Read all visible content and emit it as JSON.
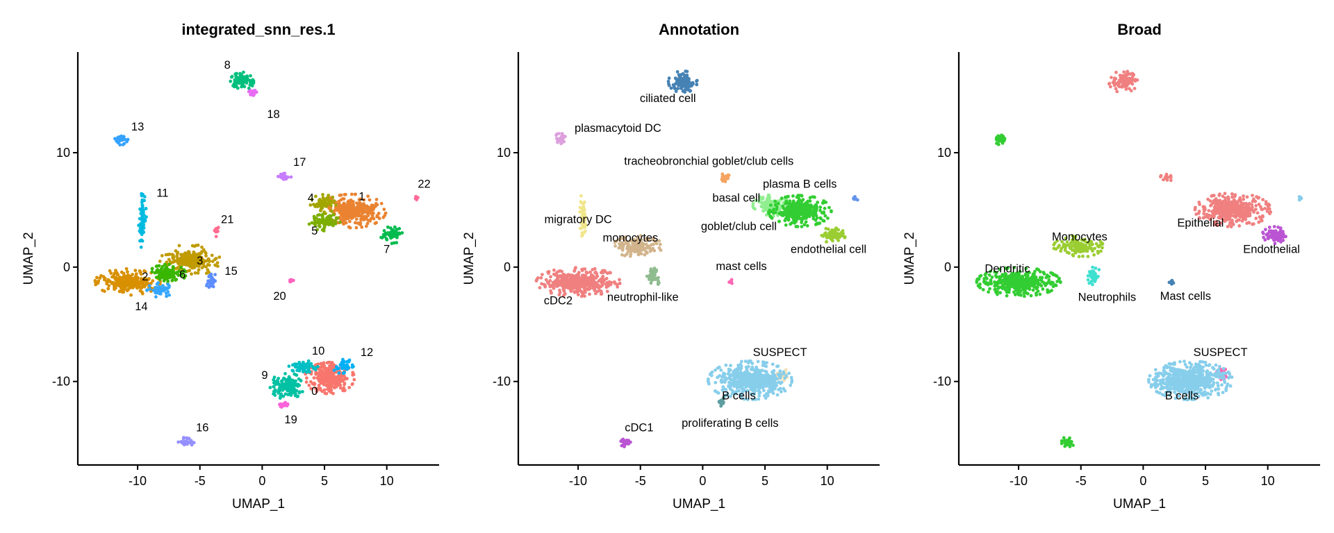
{
  "chart_data": [
    {
      "type": "scatter",
      "title": "integrated_snn_res.1",
      "xlabel": "UMAP_1",
      "ylabel": "UMAP_2",
      "xlim": [
        -14.8,
        14.2
      ],
      "ylim": [
        -17.3,
        18.8
      ],
      "xticks": [
        -10,
        -5,
        0,
        5,
        10
      ],
      "xtick_labels": [
        "-10",
        "-5",
        "0",
        "5",
        "10"
      ],
      "yticks": [
        -10,
        0,
        10
      ],
      "ytick_labels": [
        "-10",
        "0",
        "10"
      ],
      "legend": "none",
      "clusters": [
        {
          "label": "0",
          "color": "#F8766D",
          "x": 5.4,
          "y": -9.7,
          "rx": 1.9,
          "ry": 1.3,
          "n": 420,
          "lx": 4.2,
          "ly": -10.8
        },
        {
          "label": "1",
          "color": "#EA8331",
          "x": 7.2,
          "y": 4.9,
          "rx": 2.6,
          "ry": 1.4,
          "n": 420,
          "lx": 8.0,
          "ly": 6.2
        },
        {
          "label": "2",
          "color": "#D89000",
          "x": -10.8,
          "y": -1.3,
          "rx": 2.5,
          "ry": 1.1,
          "n": 360,
          "lx": -9.4,
          "ly": -0.8
        },
        {
          "label": "3",
          "color": "#C09B00",
          "x": -5.8,
          "y": 0.6,
          "rx": 2.3,
          "ry": 1.3,
          "n": 260,
          "lx": -5.0,
          "ly": 0.6
        },
        {
          "label": "4",
          "color": "#A3A500",
          "x": 4.9,
          "y": 5.5,
          "rx": 1.0,
          "ry": 0.8,
          "n": 80,
          "lx": 3.9,
          "ly": 6.1
        },
        {
          "label": "5",
          "color": "#7CAE00",
          "x": 5.2,
          "y": 3.9,
          "rx": 1.4,
          "ry": 0.7,
          "n": 90,
          "lx": 4.2,
          "ly": 3.2
        },
        {
          "label": "6",
          "color": "#39B600",
          "x": -7.6,
          "y": -0.6,
          "rx": 1.4,
          "ry": 0.8,
          "n": 150,
          "lx": -6.4,
          "ly": -0.6
        },
        {
          "label": "7",
          "color": "#00BB4E",
          "x": 10.4,
          "y": 2.8,
          "rx": 0.9,
          "ry": 0.7,
          "n": 90,
          "lx": 10.0,
          "ly": 1.6
        },
        {
          "label": "8",
          "color": "#00BF7D",
          "x": -1.5,
          "y": 16.3,
          "rx": 1.0,
          "ry": 0.7,
          "n": 120,
          "lx": -2.8,
          "ly": 17.7
        },
        {
          "label": "9",
          "color": "#00C1A3",
          "x": 2.0,
          "y": -10.4,
          "rx": 1.3,
          "ry": 1.1,
          "n": 170,
          "lx": 0.2,
          "ly": -9.4
        },
        {
          "label": "10",
          "color": "#00BFC4",
          "x": 3.3,
          "y": -8.7,
          "rx": 1.1,
          "ry": 0.5,
          "n": 80,
          "lx": 4.5,
          "ly": -7.3
        },
        {
          "label": "11",
          "color": "#00BAE0",
          "x": -9.6,
          "y": 4.0,
          "rx": 0.3,
          "ry": 2.4,
          "n": 90,
          "lx": -8.0,
          "ly": 6.5
        },
        {
          "label": "12",
          "color": "#00B0F6",
          "x": 6.6,
          "y": -8.7,
          "rx": 0.9,
          "ry": 0.6,
          "n": 50,
          "lx": 8.4,
          "ly": -7.4
        },
        {
          "label": "13",
          "color": "#35A2FF",
          "x": -11.3,
          "y": 11.2,
          "rx": 0.5,
          "ry": 0.5,
          "n": 45,
          "lx": -10.0,
          "ly": 12.3
        },
        {
          "label": "14",
          "color": "#34A6FF",
          "x": -8.2,
          "y": -2.0,
          "rx": 1.0,
          "ry": 0.6,
          "n": 60,
          "lx": -9.7,
          "ly": -3.4
        },
        {
          "label": "15",
          "color": "#5D8EFF",
          "x": -4.1,
          "y": -1.2,
          "rx": 0.4,
          "ry": 0.8,
          "n": 40,
          "lx": -2.5,
          "ly": -0.3
        },
        {
          "label": "16",
          "color": "#9590FF",
          "x": -6.1,
          "y": -15.3,
          "rx": 0.6,
          "ry": 0.4,
          "n": 45,
          "lx": -4.8,
          "ly": -14.0
        },
        {
          "label": "17",
          "color": "#C77CFF",
          "x": 1.8,
          "y": 7.9,
          "rx": 0.5,
          "ry": 0.4,
          "n": 25,
          "lx": 3.0,
          "ly": 9.2
        },
        {
          "label": "18",
          "color": "#E76BF3",
          "x": -0.6,
          "y": 15.3,
          "rx": 0.7,
          "ry": 0.3,
          "n": 30,
          "lx": 0.9,
          "ly": 13.4
        },
        {
          "label": "19",
          "color": "#FA62DB",
          "x": 1.8,
          "y": -12.0,
          "rx": 0.4,
          "ry": 0.3,
          "n": 25,
          "lx": 2.3,
          "ly": -13.3
        },
        {
          "label": "20",
          "color": "#FF62BC",
          "x": 2.3,
          "y": -1.2,
          "rx": 0.2,
          "ry": 0.2,
          "n": 10,
          "lx": 1.4,
          "ly": -2.5
        },
        {
          "label": "21",
          "color": "#FF6C91",
          "x": -3.7,
          "y": 3.2,
          "rx": 0.3,
          "ry": 0.5,
          "n": 15,
          "lx": -2.8,
          "ly": 4.2
        },
        {
          "label": "22",
          "color": "#FF6A98",
          "x": 12.4,
          "y": 6.0,
          "rx": 0.2,
          "ry": 0.2,
          "n": 10,
          "lx": 13.0,
          "ly": 7.3
        }
      ]
    },
    {
      "type": "scatter",
      "title": "Annotation",
      "xlabel": "UMAP_1",
      "ylabel": "UMAP_2",
      "xlim": [
        -14.8,
        14.2
      ],
      "ylim": [
        -17.3,
        18.8
      ],
      "xticks": [
        -10,
        -5,
        0,
        5,
        10
      ],
      "xtick_labels": [
        "-10",
        "-5",
        "0",
        "5",
        "10"
      ],
      "yticks": [
        -10,
        0,
        10
      ],
      "ytick_labels": [
        "-10",
        "0",
        "10"
      ],
      "legend": "none",
      "clusters": [
        {
          "label": "ciliated cell",
          "color": "#4682B4",
          "x": -1.6,
          "y": 16.2,
          "rx": 1.1,
          "ry": 0.9,
          "n": 140,
          "lx": -2.8,
          "ly": 14.8
        },
        {
          "label": "plasmacytoid DC",
          "color": "#DDA0DD",
          "x": -11.4,
          "y": 11.2,
          "rx": 0.5,
          "ry": 0.5,
          "n": 45,
          "lx": -6.8,
          "ly": 12.2
        },
        {
          "label": "tracheobronchial goblet/club cells",
          "color": "#F4A460",
          "x": 1.9,
          "y": 7.8,
          "rx": 0.5,
          "ry": 0.4,
          "n": 25,
          "lx": 0.5,
          "ly": 9.3
        },
        {
          "label": "plasma B cells",
          "color": "#6495ED",
          "x": 12.2,
          "y": 6.0,
          "rx": 0.3,
          "ry": 0.2,
          "n": 15,
          "lx": 7.8,
          "ly": 7.3
        },
        {
          "label": "basal cell",
          "color": "#90EE90",
          "x": 5.5,
          "y": 5.4,
          "rx": 1.4,
          "ry": 0.9,
          "n": 160,
          "lx": 2.7,
          "ly": 6.1
        },
        {
          "label": "goblet/club cell",
          "color": "#32CD32",
          "x": 7.8,
          "y": 4.9,
          "rx": 2.4,
          "ry": 1.3,
          "n": 420,
          "lx": 2.9,
          "ly": 3.6
        },
        {
          "label": "endothelial cell",
          "color": "#9ACD32",
          "x": 10.5,
          "y": 2.8,
          "rx": 0.9,
          "ry": 0.7,
          "n": 100,
          "lx": 10.1,
          "ly": 1.6
        },
        {
          "label": "migratory DC",
          "color": "#F0E68C",
          "x": -9.6,
          "y": 4.5,
          "rx": 0.3,
          "ry": 1.9,
          "n": 80,
          "lx": -10.0,
          "ly": 4.2
        },
        {
          "label": "monocytes",
          "color": "#D2B48C",
          "x": -5.2,
          "y": 1.8,
          "rx": 1.9,
          "ry": 0.9,
          "n": 160,
          "lx": -5.8,
          "ly": 2.6
        },
        {
          "label": "neutrophil-like",
          "color": "#8FBC8F",
          "x": -4.0,
          "y": -0.8,
          "rx": 0.6,
          "ry": 0.9,
          "n": 50,
          "lx": -4.8,
          "ly": -2.6
        },
        {
          "label": "cDC2",
          "color": "#F08080",
          "x": -10.0,
          "y": -1.3,
          "rx": 3.2,
          "ry": 1.2,
          "n": 520,
          "lx": -11.6,
          "ly": -2.9
        },
        {
          "label": "mast cells",
          "color": "#FF69B4",
          "x": 2.3,
          "y": -1.3,
          "rx": 0.2,
          "ry": 0.2,
          "n": 10,
          "lx": 3.1,
          "ly": 0.1
        },
        {
          "label": "SUSPECT",
          "color": "#F5DEB3",
          "x": 6.3,
          "y": -9.4,
          "rx": 0.6,
          "ry": 0.5,
          "n": 30,
          "lx": 6.2,
          "ly": -7.4
        },
        {
          "label": "B cells",
          "color": "#87CEEB",
          "x": 3.8,
          "y": -9.9,
          "rx": 3.2,
          "ry": 1.6,
          "n": 700,
          "lx": 2.9,
          "ly": -11.2
        },
        {
          "label": "proliferating B cells",
          "color": "#5F9EA0",
          "x": 1.5,
          "y": -11.8,
          "rx": 0.3,
          "ry": 0.5,
          "n": 25,
          "lx": 2.2,
          "ly": -13.6
        },
        {
          "label": "cDC1",
          "color": "#BA55D3",
          "x": -6.1,
          "y": -15.3,
          "rx": 0.6,
          "ry": 0.4,
          "n": 45,
          "lx": -5.1,
          "ly": -14.0
        }
      ]
    },
    {
      "type": "scatter",
      "title": "Broad",
      "xlabel": "UMAP_1",
      "ylabel": "UMAP_2",
      "xlim": [
        -14.8,
        14.2
      ],
      "ylim": [
        -17.3,
        18.8
      ],
      "xticks": [
        -10,
        -5,
        0,
        5,
        10
      ],
      "xtick_labels": [
        "-10",
        "-5",
        "0",
        "5",
        "10"
      ],
      "yticks": [
        -10,
        0,
        10
      ],
      "ytick_labels": [
        "-10",
        "0",
        "10"
      ],
      "legend": "none",
      "clusters": [
        {
          "label": "",
          "color": "#F08080",
          "x": -1.6,
          "y": 16.2,
          "rx": 1.1,
          "ry": 0.9,
          "n": 140
        },
        {
          "label": "",
          "color": "#F08080",
          "x": 1.9,
          "y": 7.8,
          "rx": 0.5,
          "ry": 0.4,
          "n": 25
        },
        {
          "label": "",
          "color": "#32CD32",
          "x": -11.4,
          "y": 11.2,
          "rx": 0.5,
          "ry": 0.5,
          "n": 45
        },
        {
          "label": "",
          "color": "#32CD32",
          "x": -6.1,
          "y": -15.3,
          "rx": 0.6,
          "ry": 0.4,
          "n": 45
        },
        {
          "label": "",
          "color": "#87CEEB",
          "x": 12.6,
          "y": 6.0,
          "rx": 0.2,
          "ry": 0.2,
          "n": 12
        },
        {
          "label": "Epithelial",
          "color": "#F08080",
          "x": 7.2,
          "y": 5.0,
          "rx": 2.9,
          "ry": 1.4,
          "n": 560,
          "lx": 4.6,
          "ly": 3.9
        },
        {
          "label": "Endothelial",
          "color": "#BA55D3",
          "x": 10.5,
          "y": 2.8,
          "rx": 0.9,
          "ry": 0.7,
          "n": 100,
          "lx": 10.3,
          "ly": 1.6
        },
        {
          "label": "Monocytes",
          "color": "#9ACD32",
          "x": -5.2,
          "y": 1.8,
          "rx": 1.9,
          "ry": 0.9,
          "n": 160,
          "lx": -5.1,
          "ly": 2.7
        },
        {
          "label": "Neutrophils",
          "color": "#40E0D0",
          "x": -4.0,
          "y": -0.8,
          "rx": 0.6,
          "ry": 0.9,
          "n": 50,
          "lx": -2.9,
          "ly": -2.6
        },
        {
          "label": "Dendritic",
          "color": "#32CD32",
          "x": -10.0,
          "y": -1.3,
          "rx": 3.2,
          "ry": 1.2,
          "n": 560,
          "lx": -10.9,
          "ly": -0.1
        },
        {
          "label": "Mast cells",
          "color": "#4682B4",
          "x": 2.3,
          "y": -1.3,
          "rx": 0.2,
          "ry": 0.2,
          "n": 10,
          "lx": 3.4,
          "ly": -2.5
        },
        {
          "label": "SUSPECT",
          "color": "#FF69B4",
          "x": 6.3,
          "y": -9.4,
          "rx": 0.6,
          "ry": 0.5,
          "n": 30,
          "lx": 6.2,
          "ly": -7.4
        },
        {
          "label": "B cells",
          "color": "#87CEEB",
          "x": 3.8,
          "y": -9.9,
          "rx": 3.2,
          "ry": 1.6,
          "n": 740,
          "lx": 3.1,
          "ly": -11.2
        }
      ]
    }
  ]
}
